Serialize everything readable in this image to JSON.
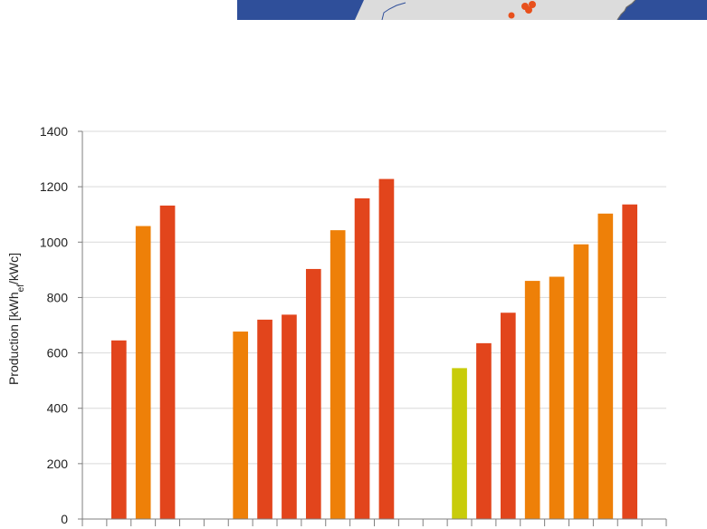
{
  "chart_data": {
    "type": "bar",
    "ylabel": {
      "prefix": "Production [kWh",
      "sub": "ef",
      "suffix": "/kWc]"
    },
    "ylim": [
      0,
      1400
    ],
    "yticks": [
      "0",
      "200",
      "400",
      "600",
      "800",
      "1000",
      "1200",
      "1400"
    ],
    "grid": true,
    "slots": 23,
    "bars": [
      {
        "slot": 1,
        "value": 645,
        "color": "#e2451c"
      },
      {
        "slot": 2,
        "value": 1058,
        "color": "#ee8008"
      },
      {
        "slot": 3,
        "value": 1132,
        "color": "#e2451c"
      },
      {
        "slot": 6,
        "value": 677,
        "color": "#ee8008"
      },
      {
        "slot": 7,
        "value": 720,
        "color": "#e2451c"
      },
      {
        "slot": 8,
        "value": 738,
        "color": "#e2451c"
      },
      {
        "slot": 9,
        "value": 903,
        "color": "#e2451c"
      },
      {
        "slot": 10,
        "value": 1043,
        "color": "#ee8008"
      },
      {
        "slot": 11,
        "value": 1158,
        "color": "#e2451c"
      },
      {
        "slot": 12,
        "value": 1228,
        "color": "#e2451c"
      },
      {
        "slot": 15,
        "value": 545,
        "color": "#c8cc0a"
      },
      {
        "slot": 16,
        "value": 635,
        "color": "#e2451c"
      },
      {
        "slot": 17,
        "value": 745,
        "color": "#e2451c"
      },
      {
        "slot": 18,
        "value": 860,
        "color": "#ee8008"
      },
      {
        "slot": 19,
        "value": 875,
        "color": "#ee8008"
      },
      {
        "slot": 20,
        "value": 992,
        "color": "#ee8008"
      },
      {
        "slot": 21,
        "value": 1103,
        "color": "#ee8008"
      },
      {
        "slot": 22,
        "value": 1136,
        "color": "#e2451c"
      }
    ]
  },
  "colors": {
    "map_background": "#2f4f9a",
    "map_land": "#dcdcdc",
    "map_marker": "#e8501c",
    "gridline": "#d9d9d9",
    "axis": "#7f7f7f"
  }
}
